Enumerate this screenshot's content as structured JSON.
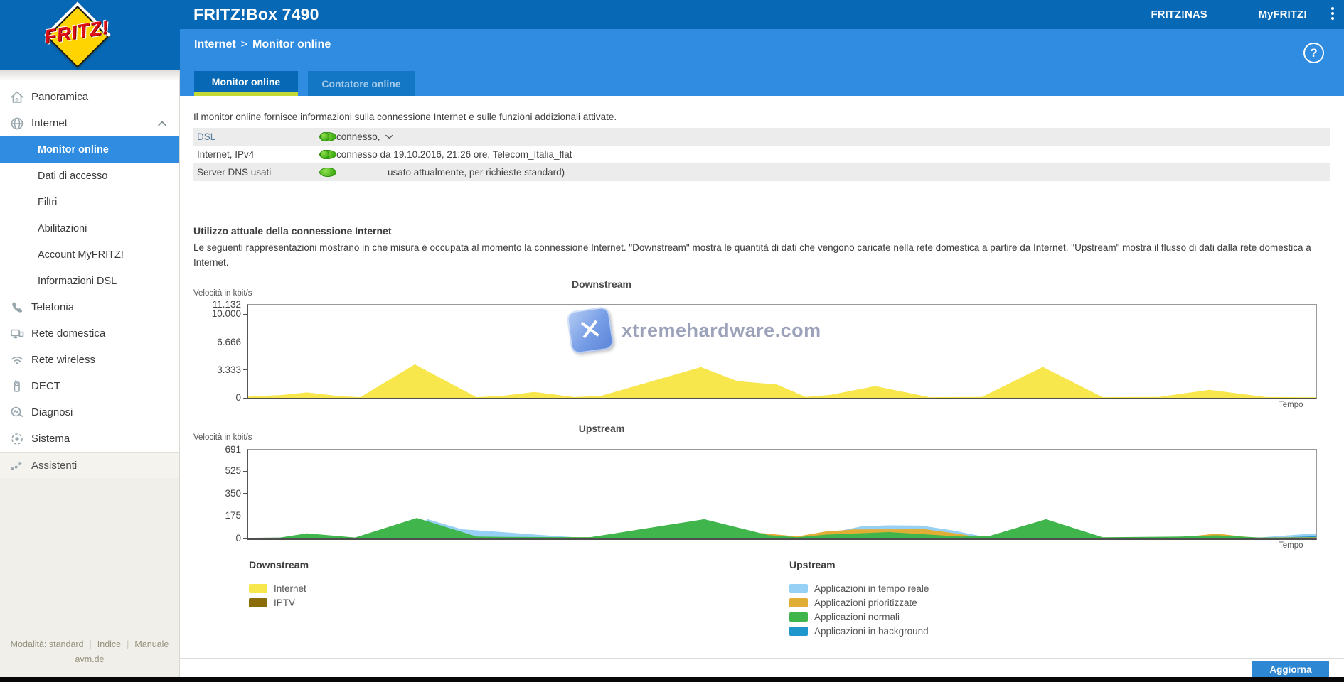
{
  "header": {
    "product": "FRITZ!Box 7490",
    "links": [
      {
        "label": "FRITZ!NAS"
      },
      {
        "label": "MyFRITZ!"
      }
    ]
  },
  "logo": {
    "text": "FRITZ!"
  },
  "breadcrumb": {
    "section": "Internet",
    "separator": ">",
    "page": "Monitor online"
  },
  "tabs": [
    {
      "label": "Monitor online",
      "active": true
    },
    {
      "label": "Contatore online",
      "active": false
    }
  ],
  "help": {
    "glyph": "?"
  },
  "sidebar": {
    "items": [
      {
        "label": "Panoramica",
        "icon": "home-icon"
      },
      {
        "label": "Internet",
        "icon": "globe-icon",
        "expanded": true,
        "children": [
          {
            "label": "Monitor online",
            "active": true
          },
          {
            "label": "Dati di accesso"
          },
          {
            "label": "Filtri"
          },
          {
            "label": "Abilitazioni"
          },
          {
            "label": "Account MyFRITZ!"
          },
          {
            "label": "Informazioni DSL"
          }
        ]
      },
      {
        "label": "Telefonia",
        "icon": "phone-icon"
      },
      {
        "label": "Rete domestica",
        "icon": "network-icon"
      },
      {
        "label": "Rete wireless",
        "icon": "wifi-icon"
      },
      {
        "label": "DECT",
        "icon": "dect-icon"
      },
      {
        "label": "Diagnosi",
        "icon": "diagnosis-icon"
      },
      {
        "label": "Sistema",
        "icon": "system-icon"
      },
      {
        "label": "Assistenti",
        "icon": "assistant-icon"
      }
    ],
    "footer": {
      "mode": "Modalità: standard",
      "links": [
        "Indice",
        "Manuale"
      ],
      "site": "avm.de"
    }
  },
  "intro": "Il monitor online fornisce informazioni sulla connessione Internet e sulle funzioni addizionali attivate.",
  "status_table": {
    "rows": [
      {
        "label": "DSL",
        "led": "green",
        "value": "connesso,"
      },
      {
        "label": "Internet, IPv4",
        "led": "green",
        "value": "connesso da 19.10.2016, 21:26 ore, Telecom_Italia_flat"
      },
      {
        "label": "Server DNS usati",
        "led": "none",
        "value": "usato attualmente, per richieste standard)"
      }
    ]
  },
  "usage_section": {
    "heading": "Utilizzo attuale della connessione Internet",
    "description": "Le seguenti rappresentazioni mostrano in che misura è occupata al momento la connessione Internet. \"Downstream\" mostra le quantità di dati che vengono caricate nella rete domestica a partire da Internet. \"Upstream\" mostra il flusso di dati dalla rete domestica a Internet."
  },
  "watermark": {
    "text": "xtremehardware.com",
    "glyph": "✕"
  },
  "chart_data": [
    {
      "type": "area",
      "title": "Downstream",
      "ylabel": "Velocità in kbit/s",
      "xlabel": "Tempo",
      "ylim": [
        0,
        11132
      ],
      "yticks": [
        {
          "value": 11132,
          "label": "11.132"
        },
        {
          "value": 10000,
          "label": "10.000"
        },
        {
          "value": 6666,
          "label": "6.666"
        },
        {
          "value": 3333,
          "label": "3.333"
        },
        {
          "value": 0,
          "label": "0"
        }
      ],
      "x_unit": "fraction_of_time_window",
      "grid": false,
      "draw_order": [
        0,
        1
      ],
      "series": [
        {
          "name": "Internet",
          "color": "#f7e64c",
          "points": [
            [
              0,
              150
            ],
            [
              0.03,
              320
            ],
            [
              0.055,
              650
            ],
            [
              0.085,
              200
            ],
            [
              0.105,
              80
            ],
            [
              0.156,
              4000
            ],
            [
              0.214,
              80
            ],
            [
              0.24,
              260
            ],
            [
              0.268,
              700
            ],
            [
              0.305,
              90
            ],
            [
              0.33,
              220
            ],
            [
              0.424,
              3680
            ],
            [
              0.458,
              2000
            ],
            [
              0.495,
              1600
            ],
            [
              0.522,
              100
            ],
            [
              0.545,
              350
            ],
            [
              0.587,
              1400
            ],
            [
              0.638,
              80
            ],
            [
              0.687,
              110
            ],
            [
              0.744,
              3700
            ],
            [
              0.8,
              80
            ],
            [
              0.853,
              110
            ],
            [
              0.9,
              950
            ],
            [
              0.953,
              90
            ],
            [
              1,
              70
            ]
          ]
        },
        {
          "name": "IPTV",
          "color": "#8a6c08",
          "points": [
            [
              0,
              0
            ],
            [
              1,
              0
            ]
          ]
        }
      ]
    },
    {
      "type": "area",
      "title": "Upstream",
      "ylabel": "Velocità in kbit/s",
      "xlabel": "Tempo",
      "ylim": [
        0,
        691
      ],
      "yticks": [
        {
          "value": 691,
          "label": "691"
        },
        {
          "value": 525,
          "label": "525"
        },
        {
          "value": 350,
          "label": "350"
        },
        {
          "value": 175,
          "label": "175"
        },
        {
          "value": 0,
          "label": "0"
        }
      ],
      "x_unit": "fraction_of_time_window",
      "grid": false,
      "draw_order": [
        0,
        3,
        1,
        2
      ],
      "series": [
        {
          "name": "Applicazioni in tempo reale",
          "color": "#96d0f4",
          "points": [
            [
              0,
              4
            ],
            [
              0.12,
              6
            ],
            [
              0.145,
              18
            ],
            [
              0.168,
              150
            ],
            [
              0.2,
              72
            ],
            [
              0.23,
              55
            ],
            [
              0.27,
              30
            ],
            [
              0.31,
              8
            ],
            [
              0.41,
              20
            ],
            [
              0.45,
              30
            ],
            [
              0.5,
              12
            ],
            [
              0.53,
              18
            ],
            [
              0.575,
              95
            ],
            [
              0.6,
              102
            ],
            [
              0.63,
              100
            ],
            [
              0.66,
              62
            ],
            [
              0.69,
              12
            ],
            [
              0.75,
              20
            ],
            [
              0.8,
              6
            ],
            [
              0.94,
              4
            ],
            [
              0.98,
              28
            ],
            [
              1,
              40
            ]
          ]
        },
        {
          "name": "Applicazioni prioritizzate",
          "color": "#e0ae34",
          "points": [
            [
              0,
              2
            ],
            [
              0.41,
              12
            ],
            [
              0.447,
              35
            ],
            [
              0.481,
              42
            ],
            [
              0.514,
              16
            ],
            [
              0.541,
              55
            ],
            [
              0.567,
              70
            ],
            [
              0.634,
              72
            ],
            [
              0.66,
              42
            ],
            [
              0.687,
              8
            ],
            [
              0.75,
              5
            ],
            [
              0.873,
              10
            ],
            [
              0.907,
              38
            ],
            [
              0.94,
              8
            ],
            [
              1,
              10
            ]
          ]
        },
        {
          "name": "Applicazioni normali",
          "color": "#3fb54b",
          "points": [
            [
              0,
              5
            ],
            [
              0.03,
              8
            ],
            [
              0.055,
              40
            ],
            [
              0.1,
              8
            ],
            [
              0.158,
              160
            ],
            [
              0.214,
              15
            ],
            [
              0.24,
              12
            ],
            [
              0.32,
              10
            ],
            [
              0.427,
              150
            ],
            [
              0.487,
              26
            ],
            [
              0.514,
              10
            ],
            [
              0.541,
              30
            ],
            [
              0.6,
              50
            ],
            [
              0.667,
              15
            ],
            [
              0.694,
              20
            ],
            [
              0.747,
              150
            ],
            [
              0.8,
              10
            ],
            [
              0.873,
              15
            ],
            [
              0.907,
              25
            ],
            [
              0.947,
              8
            ],
            [
              1,
              6
            ]
          ]
        },
        {
          "name": "Applicazioni in background",
          "color": "#2097cc",
          "points": [
            [
              0,
              2
            ],
            [
              0.95,
              2
            ],
            [
              0.985,
              14
            ],
            [
              1,
              18
            ]
          ]
        }
      ]
    }
  ],
  "legends": [
    {
      "heading": "Downstream",
      "items": [
        {
          "label": "Internet",
          "color": "#f7e64c"
        },
        {
          "label": "IPTV",
          "color": "#8a6c08"
        }
      ]
    },
    {
      "heading": "Upstream",
      "items": [
        {
          "label": "Applicazioni in tempo reale",
          "color": "#96d0f4"
        },
        {
          "label": "Applicazioni prioritizzate",
          "color": "#e0ae34"
        },
        {
          "label": "Applicazioni normali",
          "color": "#3fb54b"
        },
        {
          "label": "Applicazioni in background",
          "color": "#2097cc"
        }
      ]
    }
  ],
  "footer_bar": {
    "refresh_label": "Aggiorna"
  },
  "colors": {
    "header_blue": "#0769b5",
    "subheader_blue": "#2f8ce1",
    "tab_underline": "#c3d835",
    "active_nav": "#2f8ce1",
    "button_blue": "#2e87d2",
    "led_green": "#3fae12",
    "beige": "#f0efe9"
  }
}
